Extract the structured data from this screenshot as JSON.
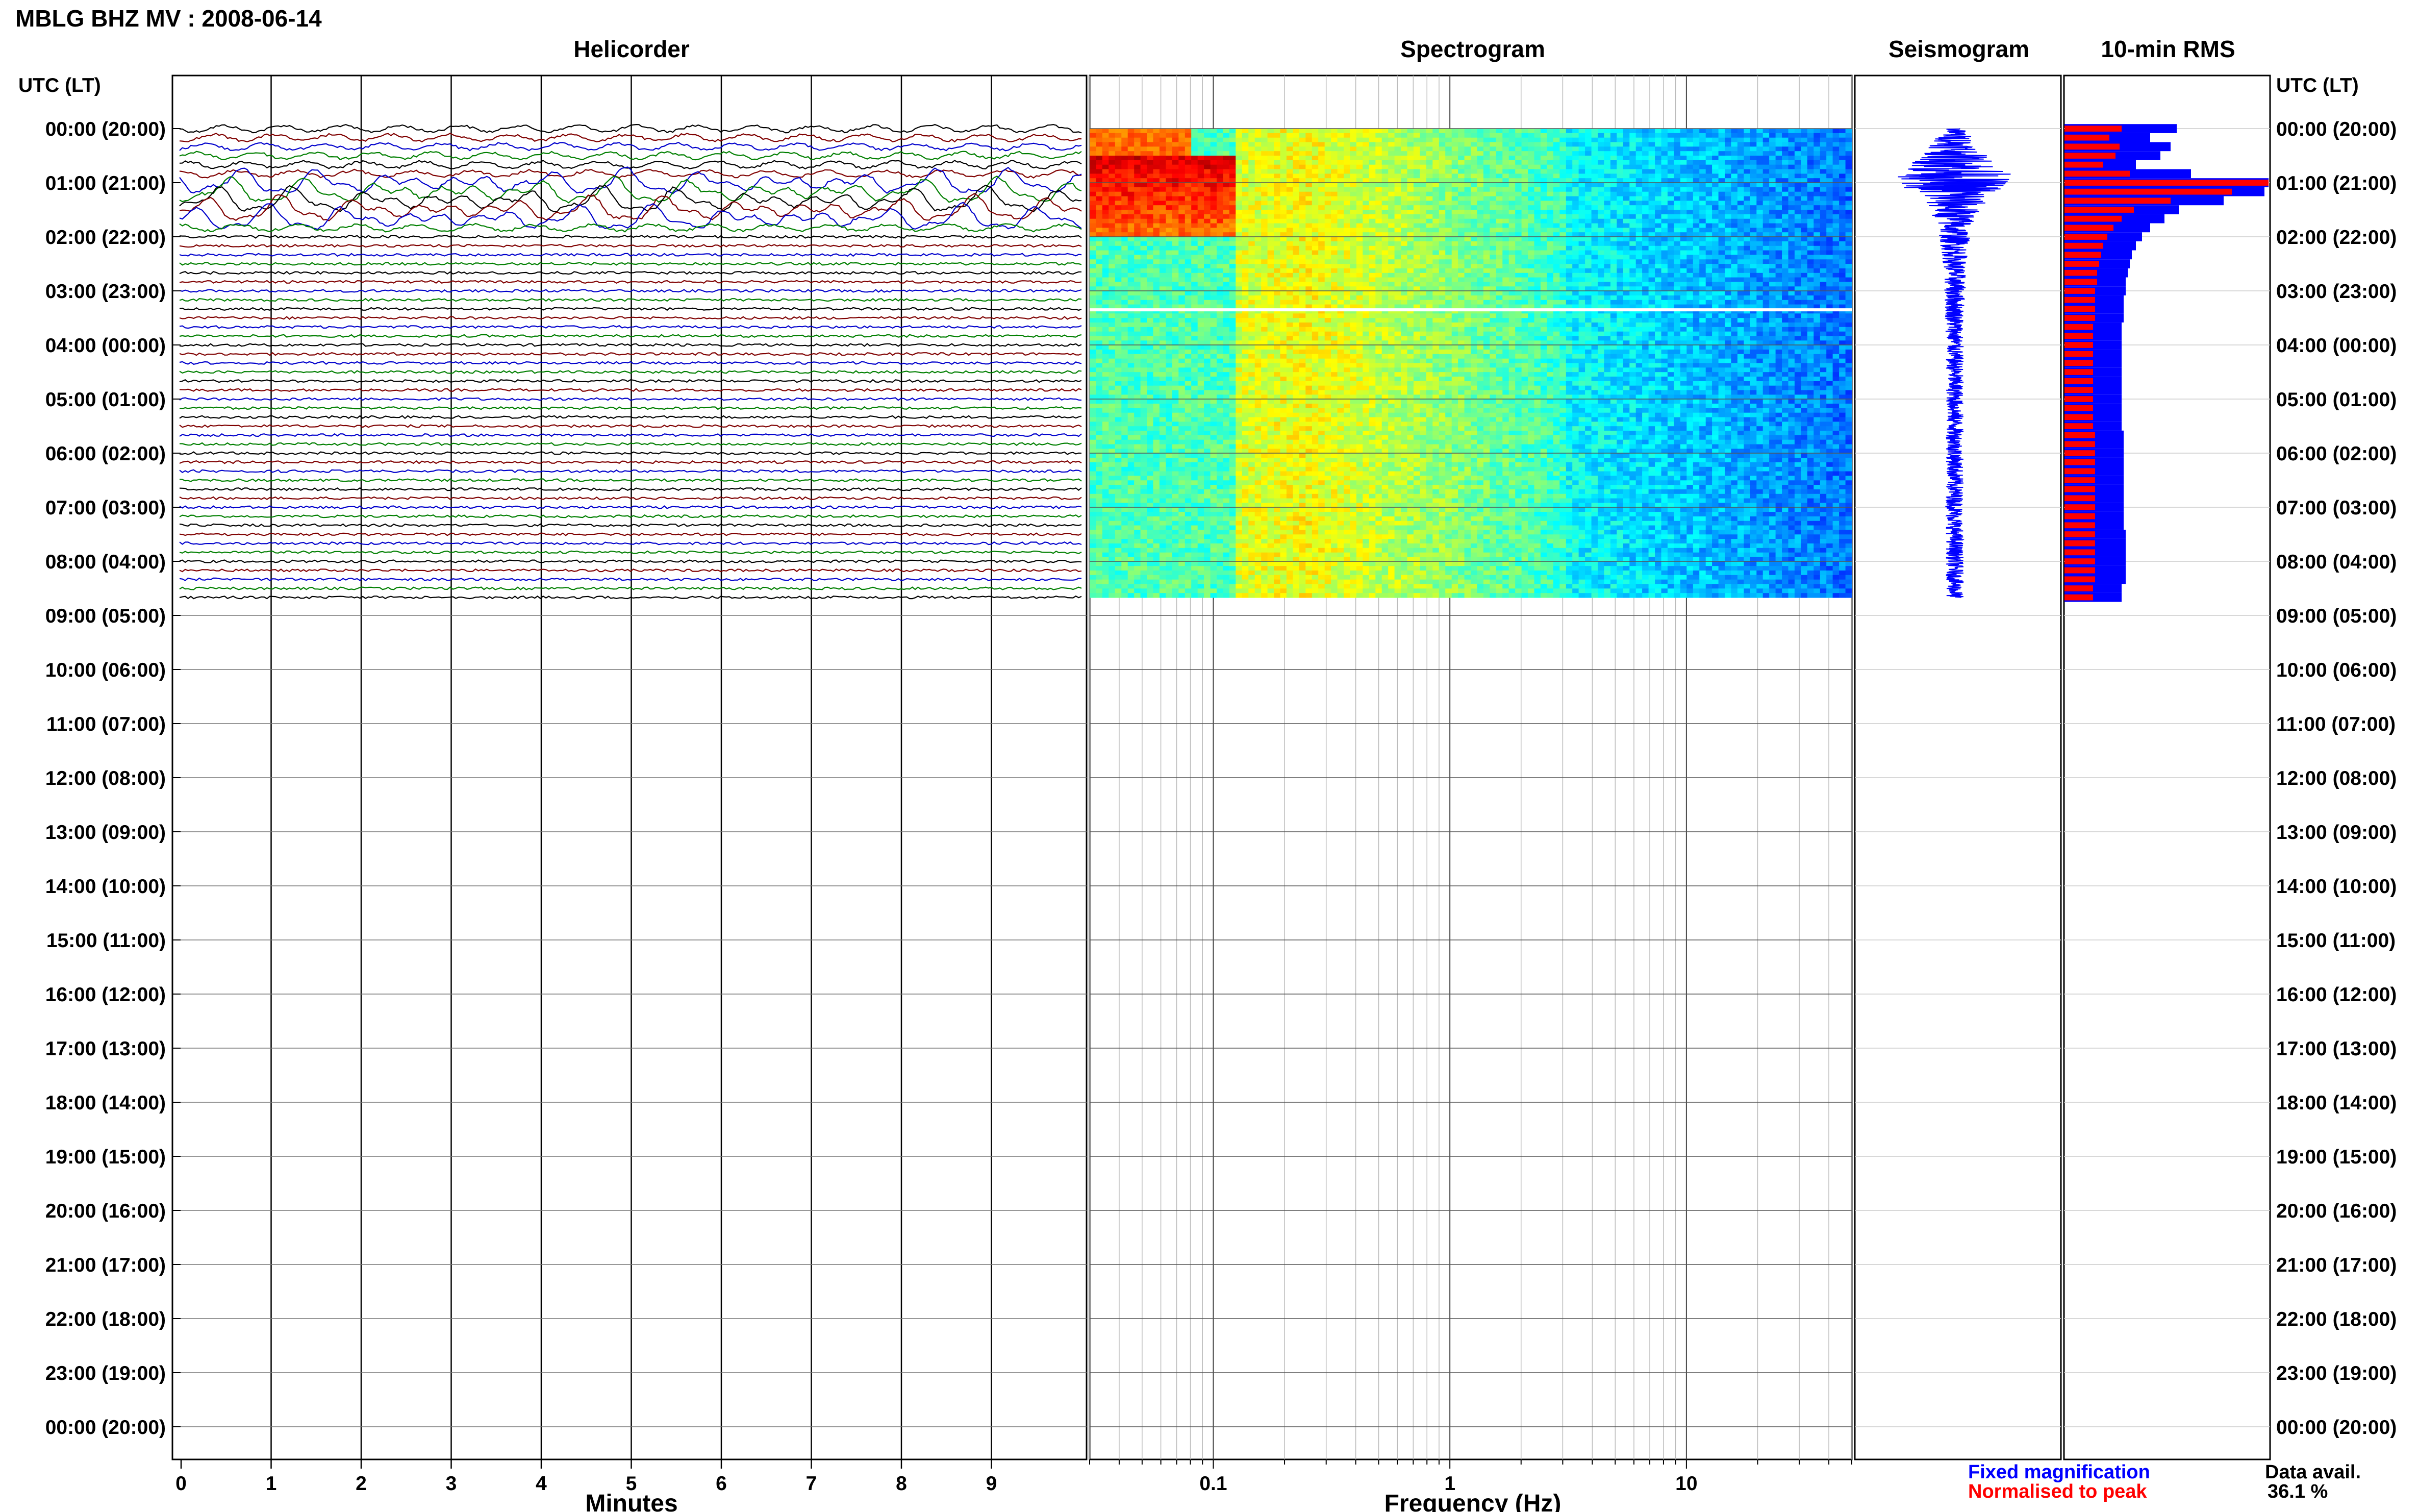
{
  "title": "MBLG BHZ MV : 2008-06-14",
  "colors": {
    "trace_cycle": [
      "#000000",
      "#7f0000",
      "#0000cc",
      "#007f00"
    ],
    "fixed": "#0000ff",
    "normalised": "#ff0000"
  },
  "chart_data": [
    {
      "type": "line",
      "name": "helicorder",
      "title": "Helicorder",
      "xlabel": "Minutes",
      "x_ticks": [
        0,
        1,
        2,
        3,
        4,
        5,
        6,
        7,
        8,
        9
      ],
      "xlim": [
        0,
        10
      ],
      "row_interval_minutes": 10,
      "rows_with_data": 53,
      "large_motion_rows": [
        6,
        7,
        8,
        9,
        10
      ],
      "ylabel_left": "UTC (LT)",
      "ylabel_right": "UTC (LT)",
      "hour_labels": [
        "00:00 (20:00)",
        "01:00 (21:00)",
        "02:00 (22:00)",
        "03:00 (23:00)",
        "04:00 (00:00)",
        "05:00 (01:00)",
        "06:00 (02:00)",
        "07:00 (03:00)",
        "08:00 (04:00)",
        "09:00 (05:00)",
        "10:00 (06:00)",
        "11:00 (07:00)",
        "12:00 (08:00)",
        "13:00 (09:00)",
        "14:00 (10:00)",
        "15:00 (11:00)",
        "16:00 (12:00)",
        "17:00 (13:00)",
        "18:00 (14:00)",
        "19:00 (15:00)",
        "20:00 (16:00)",
        "21:00 (17:00)",
        "22:00 (18:00)",
        "23:00 (19:00)",
        "00:00 (20:00)"
      ]
    },
    {
      "type": "heatmap",
      "name": "spectrogram",
      "title": "Spectrogram",
      "xlabel": "Frequency (Hz)",
      "x_scale": "log",
      "xlim": [
        0.03,
        50
      ],
      "x_tick_labels": [
        "0.1",
        "1",
        "10"
      ],
      "x_ticks": [
        0.1,
        1,
        10
      ],
      "data_hours": [
        0,
        8.67
      ],
      "gap_hour": 3.35,
      "low_freq_energy_hours": [
        0.5,
        2.0
      ]
    },
    {
      "type": "line",
      "name": "seismogram",
      "title": "Seismogram",
      "amplitude_profile": [
        {
          "hour": 0.0,
          "amp": 0.15
        },
        {
          "hour": 0.2,
          "amp": 0.35
        },
        {
          "hour": 0.5,
          "amp": 0.55
        },
        {
          "hour": 0.8,
          "amp": 1.0
        },
        {
          "hour": 1.1,
          "amp": 0.9
        },
        {
          "hour": 1.4,
          "amp": 0.5
        },
        {
          "hour": 1.8,
          "amp": 0.3
        },
        {
          "hour": 2.5,
          "amp": 0.2
        },
        {
          "hour": 4.0,
          "amp": 0.15
        },
        {
          "hour": 8.67,
          "amp": 0.15
        }
      ]
    },
    {
      "type": "bar",
      "name": "rms",
      "title": "10-min RMS",
      "interval_minutes": 10,
      "series": [
        {
          "name": "Fixed magnification",
          "values": [
            0.55,
            0.42,
            0.52,
            0.47,
            0.35,
            0.62,
            1.0,
            0.98,
            0.78,
            0.56,
            0.49,
            0.42,
            0.38,
            0.35,
            0.33,
            0.32,
            0.31,
            0.3,
            0.3,
            0.29,
            0.29,
            0.29,
            0.28,
            0.28,
            0.28,
            0.28,
            0.28,
            0.28,
            0.28,
            0.28,
            0.28,
            0.28,
            0.28,
            0.28,
            0.29,
            0.29,
            0.29,
            0.29,
            0.29,
            0.29,
            0.29,
            0.29,
            0.29,
            0.29,
            0.29,
            0.3,
            0.3,
            0.3,
            0.3,
            0.3,
            0.3,
            0.28,
            0.28
          ]
        },
        {
          "name": "Normalised to peak",
          "values": [
            0.28,
            0.22,
            0.27,
            0.25,
            0.19,
            0.32,
            1.0,
            0.82,
            0.52,
            0.34,
            0.28,
            0.24,
            0.21,
            0.19,
            0.18,
            0.17,
            0.16,
            0.16,
            0.15,
            0.15,
            0.15,
            0.15,
            0.14,
            0.14,
            0.14,
            0.14,
            0.14,
            0.14,
            0.14,
            0.14,
            0.14,
            0.14,
            0.14,
            0.14,
            0.15,
            0.15,
            0.15,
            0.15,
            0.15,
            0.15,
            0.15,
            0.15,
            0.15,
            0.15,
            0.15,
            0.15,
            0.15,
            0.15,
            0.15,
            0.15,
            0.15,
            0.14,
            0.14
          ]
        }
      ]
    }
  ],
  "legend": {
    "fixed": "Fixed magnification",
    "normalised": "Normalised to peak"
  },
  "data_avail": {
    "label": "Data avail.",
    "value": "36.1 %"
  }
}
